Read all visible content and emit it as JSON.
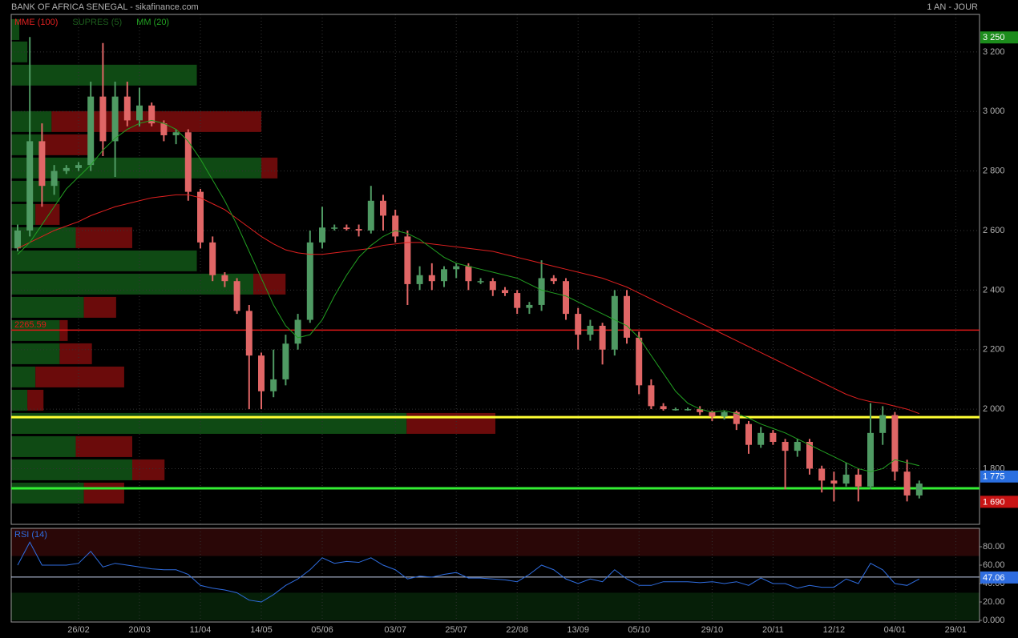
{
  "header": {
    "title": "BANK OF AFRICA SENEGAL - sikafinance.com",
    "period": "1 AN - JOUR"
  },
  "chart_data": {
    "type": "candlestick",
    "ylim": [
      1613,
      3326
    ],
    "yticks": [
      {
        "value": 3200,
        "label": "3 200"
      },
      {
        "value": 3000,
        "label": "3 000"
      },
      {
        "value": 2800,
        "label": "2 800"
      },
      {
        "value": 2600,
        "label": "2 600"
      },
      {
        "value": 2400,
        "label": "2 400"
      },
      {
        "value": 2200,
        "label": "2 200"
      },
      {
        "value": 2000,
        "label": "2 000"
      },
      {
        "value": 1800,
        "label": "1 800"
      }
    ],
    "grid": true,
    "up_color": "#4f9a63",
    "down_color": "#e06666",
    "categories": [
      null,
      null,
      null,
      null,
      null,
      "26/02",
      null,
      null,
      null,
      null,
      "20/03",
      null,
      null,
      null,
      null,
      "11/04",
      null,
      null,
      null,
      null,
      "14/05",
      null,
      null,
      null,
      null,
      "05/06",
      null,
      null,
      null,
      null,
      null,
      "03/07",
      null,
      null,
      null,
      null,
      "25/07",
      null,
      null,
      null,
      null,
      "22/08",
      null,
      null,
      null,
      null,
      "13/09",
      null,
      null,
      null,
      null,
      "05/10",
      null,
      null,
      null,
      null,
      null,
      "29/10",
      null,
      null,
      null,
      null,
      "20/11",
      null,
      null,
      null,
      null,
      "12/12",
      null,
      null,
      null,
      null,
      "04/01",
      null,
      null,
      null,
      null,
      "29/01"
    ],
    "candles": [
      [
        2540,
        2620,
        2530,
        2600
      ],
      [
        2600,
        3250,
        2580,
        2900
      ],
      [
        2900,
        2960,
        2680,
        2750
      ],
      [
        2750,
        2820,
        2720,
        2800
      ],
      [
        2800,
        2820,
        2790,
        2810
      ],
      [
        2810,
        2830,
        2800,
        2820
      ],
      [
        2820,
        3100,
        2800,
        3050
      ],
      [
        3050,
        3230,
        2850,
        2900
      ],
      [
        2900,
        3100,
        2780,
        3050
      ],
      [
        3050,
        3100,
        2950,
        2970
      ],
      [
        2970,
        3080,
        2950,
        3020
      ],
      [
        3020,
        3030,
        2950,
        2960
      ],
      [
        2960,
        2970,
        2900,
        2920
      ],
      [
        2920,
        2940,
        2890,
        2930
      ],
      [
        2930,
        2940,
        2700,
        2730
      ],
      [
        2730,
        2740,
        2540,
        2560
      ],
      [
        2560,
        2580,
        2430,
        2450
      ],
      [
        2450,
        2460,
        2410,
        2430
      ],
      [
        2430,
        2440,
        2320,
        2330
      ],
      [
        2330,
        2350,
        2000,
        2180
      ],
      [
        2180,
        2190,
        2000,
        2060
      ],
      [
        2060,
        2200,
        2040,
        2100
      ],
      [
        2100,
        2250,
        2080,
        2220
      ],
      [
        2220,
        2320,
        2200,
        2300
      ],
      [
        2300,
        2600,
        2290,
        2560
      ],
      [
        2560,
        2680,
        2540,
        2610
      ],
      [
        2610,
        2620,
        2600,
        2610
      ],
      [
        2610,
        2620,
        2600,
        2605
      ],
      [
        2605,
        2620,
        2580,
        2600
      ],
      [
        2600,
        2750,
        2590,
        2700
      ],
      [
        2700,
        2720,
        2600,
        2650
      ],
      [
        2650,
        2670,
        2560,
        2580
      ],
      [
        2580,
        2600,
        2350,
        2420
      ],
      [
        2420,
        2480,
        2400,
        2450
      ],
      [
        2450,
        2490,
        2400,
        2430
      ],
      [
        2430,
        2480,
        2410,
        2470
      ],
      [
        2470,
        2490,
        2440,
        2480
      ],
      [
        2480,
        2490,
        2400,
        2430
      ],
      [
        2430,
        2440,
        2420,
        2430
      ],
      [
        2430,
        2440,
        2380,
        2400
      ],
      [
        2400,
        2410,
        2380,
        2390
      ],
      [
        2390,
        2400,
        2320,
        2340
      ],
      [
        2340,
        2360,
        2320,
        2350
      ],
      [
        2350,
        2500,
        2330,
        2440
      ],
      [
        2440,
        2450,
        2420,
        2430
      ],
      [
        2430,
        2440,
        2300,
        2320
      ],
      [
        2320,
        2340,
        2200,
        2250
      ],
      [
        2250,
        2300,
        2230,
        2280
      ],
      [
        2280,
        2290,
        2150,
        2200
      ],
      [
        2200,
        2400,
        2180,
        2380
      ],
      [
        2380,
        2400,
        2220,
        2240
      ],
      [
        2240,
        2260,
        2050,
        2080
      ],
      [
        2080,
        2100,
        2000,
        2010
      ],
      [
        2010,
        2020,
        1995,
        2000
      ],
      [
        2000,
        2005,
        1995,
        2000
      ],
      [
        2000,
        2005,
        1995,
        2000
      ],
      [
        2000,
        2010,
        1980,
        1990
      ],
      [
        1990,
        1995,
        1960,
        1975
      ],
      [
        1975,
        1995,
        1965,
        1990
      ],
      [
        1990,
        1995,
        1930,
        1950
      ],
      [
        1950,
        1960,
        1850,
        1880
      ],
      [
        1880,
        1940,
        1870,
        1920
      ],
      [
        1920,
        1930,
        1880,
        1890
      ],
      [
        1890,
        1900,
        1730,
        1860
      ],
      [
        1860,
        1900,
        1840,
        1890
      ],
      [
        1890,
        1900,
        1780,
        1800
      ],
      [
        1800,
        1810,
        1720,
        1760
      ],
      [
        1760,
        1790,
        1690,
        1750
      ],
      [
        1750,
        1820,
        1740,
        1780
      ],
      [
        1780,
        1800,
        1690,
        1740
      ],
      [
        1740,
        2020,
        1730,
        1920
      ],
      [
        1920,
        2010,
        1880,
        1980
      ],
      [
        1980,
        1990,
        1760,
        1790
      ],
      [
        1790,
        1830,
        1690,
        1710
      ],
      [
        1710,
        1760,
        1700,
        1750
      ],
      null,
      null,
      null
    ],
    "indicators": [
      {
        "name": "MME (100)",
        "color": "#e02020",
        "values": [
          2540,
          2560,
          2580,
          2600,
          2615,
          2630,
          2650,
          2665,
          2680,
          2690,
          2700,
          2710,
          2715,
          2720,
          2720,
          2710,
          2690,
          2670,
          2640,
          2610,
          2580,
          2555,
          2535,
          2525,
          2520,
          2520,
          2525,
          2530,
          2535,
          2540,
          2550,
          2555,
          2560,
          2560,
          2555,
          2550,
          2545,
          2540,
          2535,
          2530,
          2520,
          2510,
          2500,
          2490,
          2480,
          2470,
          2460,
          2450,
          2440,
          2425,
          2410,
          2390,
          2370,
          2350,
          2330,
          2310,
          2290,
          2270,
          2250,
          2230,
          2210,
          2190,
          2170,
          2150,
          2130,
          2110,
          2090,
          2070,
          2050,
          2035,
          2025,
          2020,
          2010,
          2000,
          1985,
          null,
          null,
          null
        ]
      },
      {
        "name": "SUPRES (5)",
        "color": "#1d5e1d"
      },
      {
        "name": "MM (20)",
        "color": "#22a022",
        "values": [
          2520,
          2560,
          2620,
          2680,
          2740,
          2780,
          2820,
          2870,
          2910,
          2940,
          2960,
          2970,
          2960,
          2940,
          2900,
          2840,
          2770,
          2700,
          2620,
          2530,
          2440,
          2350,
          2280,
          2240,
          2250,
          2300,
          2380,
          2450,
          2510,
          2550,
          2580,
          2600,
          2590,
          2570,
          2540,
          2510,
          2490,
          2480,
          2470,
          2460,
          2450,
          2440,
          2420,
          2400,
          2390,
          2380,
          2360,
          2340,
          2320,
          2300,
          2280,
          2240,
          2180,
          2120,
          2060,
          2020,
          2000,
          1990,
          1995,
          1985,
          1970,
          1950,
          1935,
          1920,
          1900,
          1880,
          1860,
          1840,
          1820,
          1800,
          1790,
          1800,
          1830,
          1820,
          1810,
          null,
          null,
          null
        ]
      }
    ],
    "volume_profile": {
      "xlim": [
        0,
        120
      ],
      "up_color": "#0f4a14",
      "down_color": "#6b0b0b",
      "prices": [
        3275,
        3200,
        3122,
        2966,
        2888,
        2810,
        2732,
        2654,
        2576,
        2498,
        2420,
        2342,
        2264,
        2186,
        2108,
        2030,
        1952,
        1874,
        1796,
        1718
      ],
      "up": [
        1,
        2,
        23,
        5,
        4,
        31,
        6,
        3,
        8,
        23,
        30,
        9,
        6,
        6,
        3,
        2,
        49,
        8,
        15,
        9
      ],
      "down": [
        0,
        0,
        0,
        26,
        6,
        2,
        0,
        3,
        7,
        0,
        4,
        4,
        1,
        4,
        11,
        2,
        11,
        7,
        4,
        5
      ]
    },
    "price_alert": {
      "value": 2265.59,
      "color": "#e01818"
    },
    "support_lines": [
      {
        "value": 1973,
        "color": "#ffff33"
      },
      {
        "value": 1734,
        "color": "#33ee33"
      }
    ],
    "price_markers": [
      {
        "value": 3250,
        "label": "3 250",
        "color": "#1c8c1c"
      },
      {
        "value": 1775,
        "label": "1 775",
        "color": "#2a6fe0"
      },
      {
        "value": 1690,
        "label": "1 690",
        "color": "#c81414"
      }
    ],
    "rsi": {
      "title": "RSI (14)",
      "color": "#2f6de0",
      "ylim": [
        0,
        100
      ],
      "yticks": [
        {
          "value": 80,
          "label": "80.00"
        },
        {
          "value": 60,
          "label": "60.00"
        },
        {
          "value": 40,
          "label": "40.00"
        },
        {
          "value": 20,
          "label": "20.00"
        },
        {
          "value": 0,
          "label": "0.000"
        }
      ],
      "overbought": 70,
      "oversold": 30,
      "last": 47.06,
      "values": [
        60,
        85,
        60,
        60,
        60,
        62,
        75,
        58,
        62,
        60,
        58,
        56,
        55,
        55,
        50,
        38,
        35,
        33,
        30,
        22,
        20,
        28,
        38,
        45,
        55,
        68,
        62,
        64,
        63,
        68,
        60,
        55,
        45,
        48,
        47,
        50,
        52,
        46,
        46,
        45,
        44,
        42,
        50,
        60,
        55,
        45,
        40,
        45,
        42,
        55,
        45,
        38,
        38,
        42,
        42,
        42,
        41,
        42,
        40,
        42,
        38,
        46,
        40,
        40,
        35,
        38,
        36,
        36,
        45,
        40,
        62,
        55,
        40,
        38,
        45,
        null,
        null,
        null
      ]
    }
  }
}
